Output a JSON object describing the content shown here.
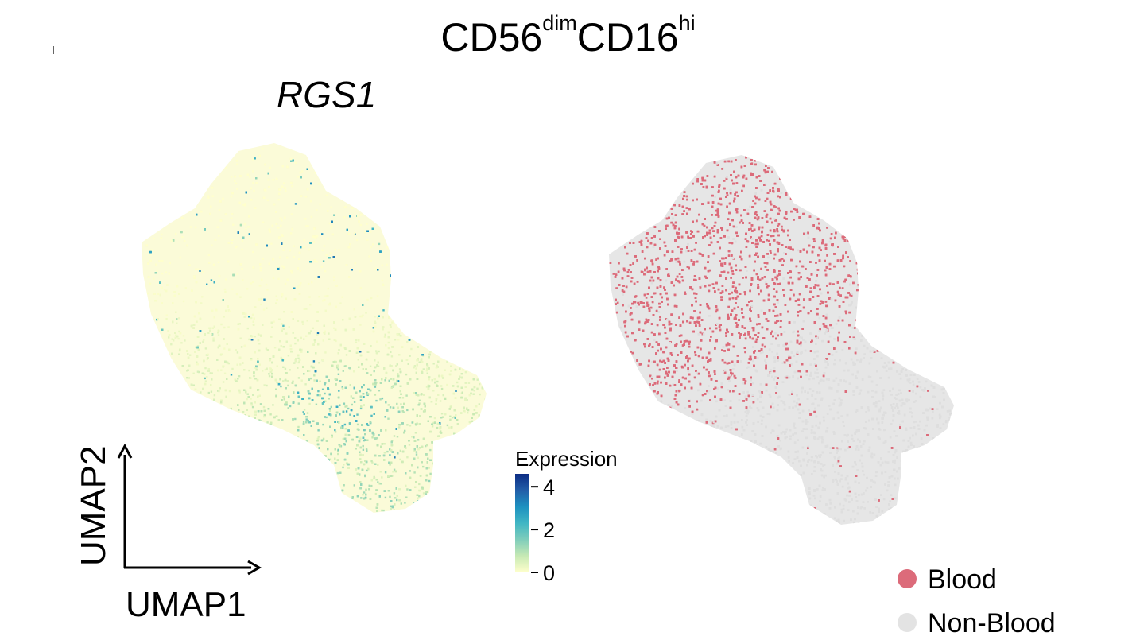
{
  "figure": {
    "title_main": "CD56",
    "title_sup1": "dim",
    "title_mid": "CD16",
    "title_sup2": "hi",
    "subtitle": "RGS1"
  },
  "chart_data": [
    {
      "type": "scatter",
      "panel": "left",
      "title": "RGS1",
      "xlabel": "UMAP1",
      "ylabel": "UMAP2",
      "color_by": "Expression",
      "colorbar": {
        "title": "Expression",
        "ticks": [
          0,
          2,
          4
        ],
        "tick_labels": [
          "0",
          "2",
          "4"
        ],
        "range": [
          0,
          4.6
        ],
        "colors": [
          "#ffffcc",
          "#c7e9b4",
          "#7fcdbb",
          "#41b6c4",
          "#1d91c0",
          "#225ea8",
          "#0c2c84"
        ]
      }
    },
    {
      "type": "scatter",
      "panel": "right",
      "color_by": "tissue",
      "legend": {
        "position": "bottom-right",
        "items": [
          {
            "label": "Blood",
            "color": "#dc6b7a"
          },
          {
            "label": "Non-Blood",
            "color": "#e3e3e3"
          }
        ]
      }
    }
  ]
}
